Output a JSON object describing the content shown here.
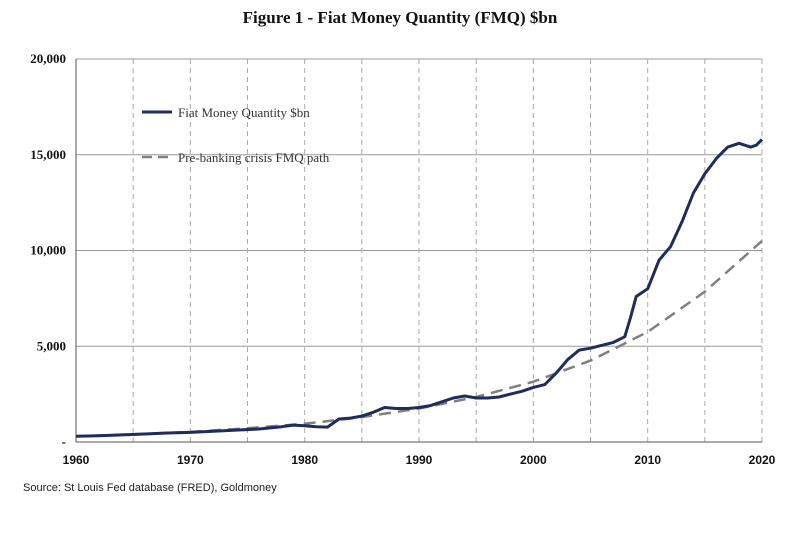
{
  "title": "Figure 1 - Fiat Money Quantity (FMQ)  $bn",
  "source": "Source: St Louis Fed  database (FRED), Goldmoney",
  "colors": {
    "fmq": "#1f2d5c",
    "path": "#808080",
    "grid": "#999999",
    "axis": "#555555"
  },
  "chart_data": {
    "type": "line",
    "title": "Figure 1 - Fiat Money Quantity (FMQ)  $bn",
    "xlim": [
      1960,
      2020
    ],
    "ylim": [
      0,
      20000
    ],
    "x_ticks": [
      "1960",
      "1970",
      "1980",
      "1990",
      "2000",
      "2010",
      "2020"
    ],
    "y_ticks": [
      "-",
      "5,000",
      "10,000",
      "15,000",
      "20,000"
    ],
    "grid": {
      "horizontal": "solid",
      "vertical": "dashed",
      "vertical_step_years": 5
    },
    "legend_position": "top-left",
    "legend": [
      "Fiat Money Quantity $bn",
      "Pre-banking crisis FMQ path"
    ],
    "series": [
      {
        "name": "Fiat Money Quantity $bn",
        "style": "solid",
        "points": [
          [
            1960,
            300
          ],
          [
            1962,
            330
          ],
          [
            1964,
            370
          ],
          [
            1966,
            420
          ],
          [
            1968,
            470
          ],
          [
            1970,
            500
          ],
          [
            1972,
            560
          ],
          [
            1974,
            620
          ],
          [
            1976,
            680
          ],
          [
            1978,
            800
          ],
          [
            1979,
            880
          ],
          [
            1980,
            850
          ],
          [
            1981,
            800
          ],
          [
            1982,
            780
          ],
          [
            1983,
            1200
          ],
          [
            1984,
            1250
          ],
          [
            1985,
            1350
          ],
          [
            1986,
            1550
          ],
          [
            1987,
            1800
          ],
          [
            1988,
            1750
          ],
          [
            1989,
            1750
          ],
          [
            1990,
            1800
          ],
          [
            1991,
            1900
          ],
          [
            1992,
            2100
          ],
          [
            1993,
            2300
          ],
          [
            1994,
            2400
          ],
          [
            1995,
            2300
          ],
          [
            1996,
            2300
          ],
          [
            1997,
            2350
          ],
          [
            1998,
            2500
          ],
          [
            1999,
            2650
          ],
          [
            2000,
            2850
          ],
          [
            2001,
            3000
          ],
          [
            2002,
            3600
          ],
          [
            2003,
            4300
          ],
          [
            2004,
            4800
          ],
          [
            2005,
            4900
          ],
          [
            2006,
            5050
          ],
          [
            2007,
            5200
          ],
          [
            2008,
            5500
          ],
          [
            2008.5,
            6500
          ],
          [
            2009,
            7600
          ],
          [
            2010,
            8000
          ],
          [
            2011,
            9500
          ],
          [
            2012,
            10200
          ],
          [
            2013,
            11500
          ],
          [
            2014,
            13000
          ],
          [
            2015,
            14000
          ],
          [
            2016,
            14800
          ],
          [
            2017,
            15400
          ],
          [
            2018,
            15600
          ],
          [
            2019,
            15400
          ],
          [
            2019.5,
            15500
          ],
          [
            2020,
            15800
          ]
        ]
      },
      {
        "name": "Pre-banking crisis FMQ path",
        "style": "dashed",
        "points": [
          [
            1960,
            300
          ],
          [
            1965,
            400
          ],
          [
            1970,
            530
          ],
          [
            1975,
            720
          ],
          [
            1980,
            950
          ],
          [
            1985,
            1300
          ],
          [
            1990,
            1750
          ],
          [
            1995,
            2350
          ],
          [
            2000,
            3150
          ],
          [
            2005,
            4250
          ],
          [
            2010,
            5750
          ],
          [
            2015,
            7850
          ],
          [
            2020,
            10500
          ]
        ]
      }
    ]
  }
}
